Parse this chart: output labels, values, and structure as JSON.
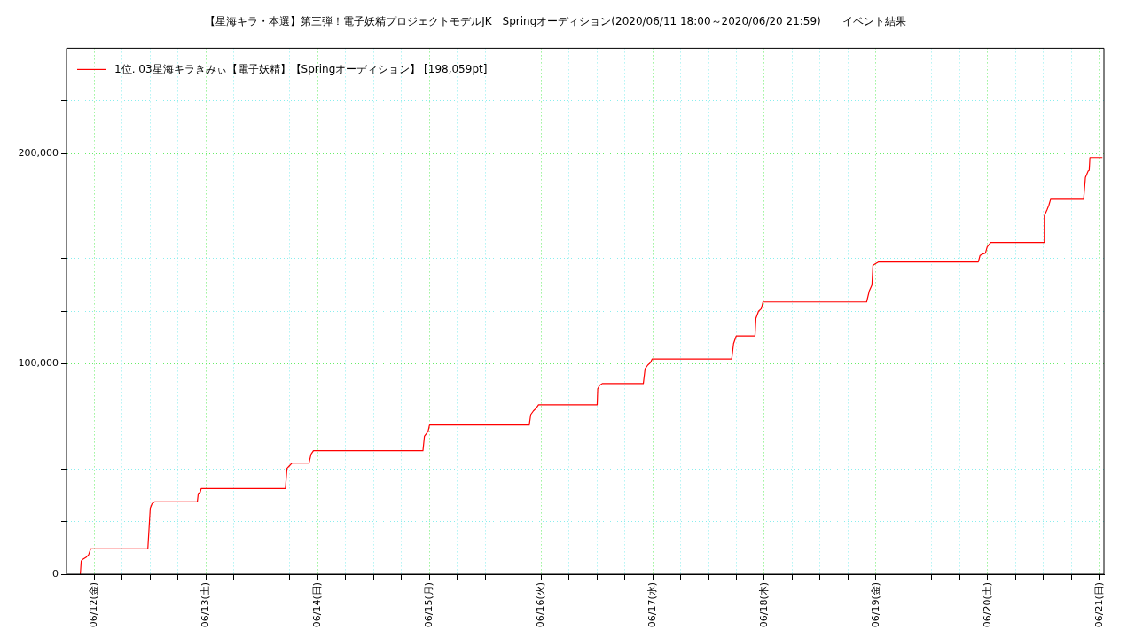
{
  "chart_data": {
    "type": "line",
    "title": "【星海キラ・本選】第三弾！電子妖精プロジェクトモデルJK　Springオーディション(2020/06/11 18:00～2020/06/20 21:59)　　イベント結果",
    "x": [
      "2020-06-11T20:58",
      "2020-06-11T21:10",
      "2020-06-11T21:30",
      "2020-06-11T22:11",
      "2020-06-11T22:45",
      "2020-06-11T23:08",
      "2020-06-11T23:14",
      "2020-06-12T11:29",
      "2020-06-12T12:00",
      "2020-06-12T12:23",
      "2020-06-12T12:58",
      "2020-06-12T22:07",
      "2020-06-12T22:19",
      "2020-06-12T22:45",
      "2020-06-12T22:57",
      "2020-06-13T17:03",
      "2020-06-13T17:23",
      "2020-06-13T17:57",
      "2020-06-13T18:28",
      "2020-06-13T22:07",
      "2020-06-13T22:34",
      "2020-06-13T23:05",
      "2020-06-14T22:37",
      "2020-06-14T22:56",
      "2020-06-14T23:20",
      "2020-06-14T23:43",
      "2020-06-15T00:02",
      "2020-06-15T21:28",
      "2020-06-15T21:47",
      "2020-06-15T22:22",
      "2020-06-15T22:56",
      "2020-06-15T23:28",
      "2020-06-16T12:04",
      "2020-06-16T12:11",
      "2020-06-16T12:35",
      "2020-06-16T13:09",
      "2020-06-16T21:59",
      "2020-06-16T22:22",
      "2020-06-16T22:56",
      "2020-06-16T23:31",
      "2020-06-16T23:54",
      "2020-06-17T16:59",
      "2020-06-17T17:23",
      "2020-06-17T17:57",
      "2020-06-17T21:59",
      "2020-06-17T22:11",
      "2020-06-17T22:45",
      "2020-06-17T23:20",
      "2020-06-17T23:43",
      "2020-06-18T21:59",
      "2020-06-18T22:34",
      "2020-06-18T23:08",
      "2020-06-18T23:20",
      "2020-06-18T23:54",
      "2020-06-19T00:29",
      "2020-06-19T21:59",
      "2020-06-19T22:22",
      "2020-06-19T22:56",
      "2020-06-19T23:31",
      "2020-06-19T23:54",
      "2020-06-20T00:40",
      "2020-06-20T12:04",
      "2020-06-20T12:11",
      "2020-06-20T12:46",
      "2020-06-20T13:09",
      "2020-06-20T13:32",
      "2020-06-20T20:38",
      "2020-06-20T21:01",
      "2020-06-20T21:36",
      "2020-06-20T21:50",
      "2020-06-20T21:59",
      "2020-06-21T00:40"
    ],
    "series": [
      {
        "name": "1位. 03星海キラきみぃ【電子妖精】【Springオーディション】 [198,059pt]",
        "color": "#ff0000",
        "values": [
          0,
          6300,
          7100,
          8000,
          9200,
          11700,
          12100,
          12100,
          31400,
          33500,
          34400,
          34400,
          38300,
          39000,
          40700,
          40700,
          50300,
          51600,
          52800,
          52800,
          57000,
          58700,
          58700,
          65500,
          66700,
          67900,
          70900,
          70900,
          75800,
          77600,
          78800,
          80500,
          80500,
          88000,
          89700,
          90600,
          90600,
          97700,
          99400,
          100600,
          102300,
          102300,
          109600,
          113200,
          113200,
          121600,
          125000,
          126200,
          129400,
          129400,
          134700,
          137500,
          146800,
          147600,
          148400,
          148400,
          151500,
          152200,
          152600,
          155600,
          157700,
          157700,
          170400,
          173200,
          175300,
          178200,
          178200,
          188600,
          191600,
          192000,
          198059,
          198059
        ]
      }
    ],
    "xlim": [
      "2020-06-11T18:00",
      "2020-06-21T01:00"
    ],
    "xticks": [
      {
        "value": "2020-06-12T00:00",
        "label": "06/12(金)"
      },
      {
        "value": "2020-06-12T06:00",
        "label": null
      },
      {
        "value": "2020-06-12T12:00",
        "label": null
      },
      {
        "value": "2020-06-12T18:00",
        "label": null
      },
      {
        "value": "2020-06-13T00:00",
        "label": "06/13(土)"
      },
      {
        "value": "2020-06-13T06:00",
        "label": null
      },
      {
        "value": "2020-06-13T12:00",
        "label": null
      },
      {
        "value": "2020-06-13T18:00",
        "label": null
      },
      {
        "value": "2020-06-14T00:00",
        "label": "06/14(日)"
      },
      {
        "value": "2020-06-14T06:00",
        "label": null
      },
      {
        "value": "2020-06-14T12:00",
        "label": null
      },
      {
        "value": "2020-06-14T18:00",
        "label": null
      },
      {
        "value": "2020-06-15T00:00",
        "label": "06/15(月)"
      },
      {
        "value": "2020-06-15T06:00",
        "label": null
      },
      {
        "value": "2020-06-15T12:00",
        "label": null
      },
      {
        "value": "2020-06-15T18:00",
        "label": null
      },
      {
        "value": "2020-06-16T00:00",
        "label": "06/16(火)"
      },
      {
        "value": "2020-06-16T06:00",
        "label": null
      },
      {
        "value": "2020-06-16T12:00",
        "label": null
      },
      {
        "value": "2020-06-16T18:00",
        "label": null
      },
      {
        "value": "2020-06-17T00:00",
        "label": "06/17(水)"
      },
      {
        "value": "2020-06-17T06:00",
        "label": null
      },
      {
        "value": "2020-06-17T12:00",
        "label": null
      },
      {
        "value": "2020-06-17T18:00",
        "label": null
      },
      {
        "value": "2020-06-18T00:00",
        "label": "06/18(木)"
      },
      {
        "value": "2020-06-18T06:00",
        "label": null
      },
      {
        "value": "2020-06-18T12:00",
        "label": null
      },
      {
        "value": "2020-06-18T18:00",
        "label": null
      },
      {
        "value": "2020-06-19T00:00",
        "label": "06/19(金)"
      },
      {
        "value": "2020-06-19T06:00",
        "label": null
      },
      {
        "value": "2020-06-19T12:00",
        "label": null
      },
      {
        "value": "2020-06-19T18:00",
        "label": null
      },
      {
        "value": "2020-06-20T00:00",
        "label": "06/20(土)"
      },
      {
        "value": "2020-06-20T06:00",
        "label": null
      },
      {
        "value": "2020-06-20T12:00",
        "label": null
      },
      {
        "value": "2020-06-20T18:00",
        "label": null
      },
      {
        "value": "2020-06-21T00:00",
        "label": "06/21(日)"
      }
    ],
    "ylim": [
      0,
      250000
    ],
    "yticks": [
      {
        "value": 0,
        "label": "0"
      },
      {
        "value": 25000,
        "label": null
      },
      {
        "value": 50000,
        "label": null
      },
      {
        "value": 75000,
        "label": null
      },
      {
        "value": 100000,
        "label": "100,000"
      },
      {
        "value": 125000,
        "label": null
      },
      {
        "value": 150000,
        "label": null
      },
      {
        "value": 175000,
        "label": null
      },
      {
        "value": 200000,
        "label": "200,000"
      },
      {
        "value": 225000,
        "label": null
      }
    ],
    "grid": true,
    "legend": "top left",
    "marker": "none",
    "line_style": "solid"
  }
}
